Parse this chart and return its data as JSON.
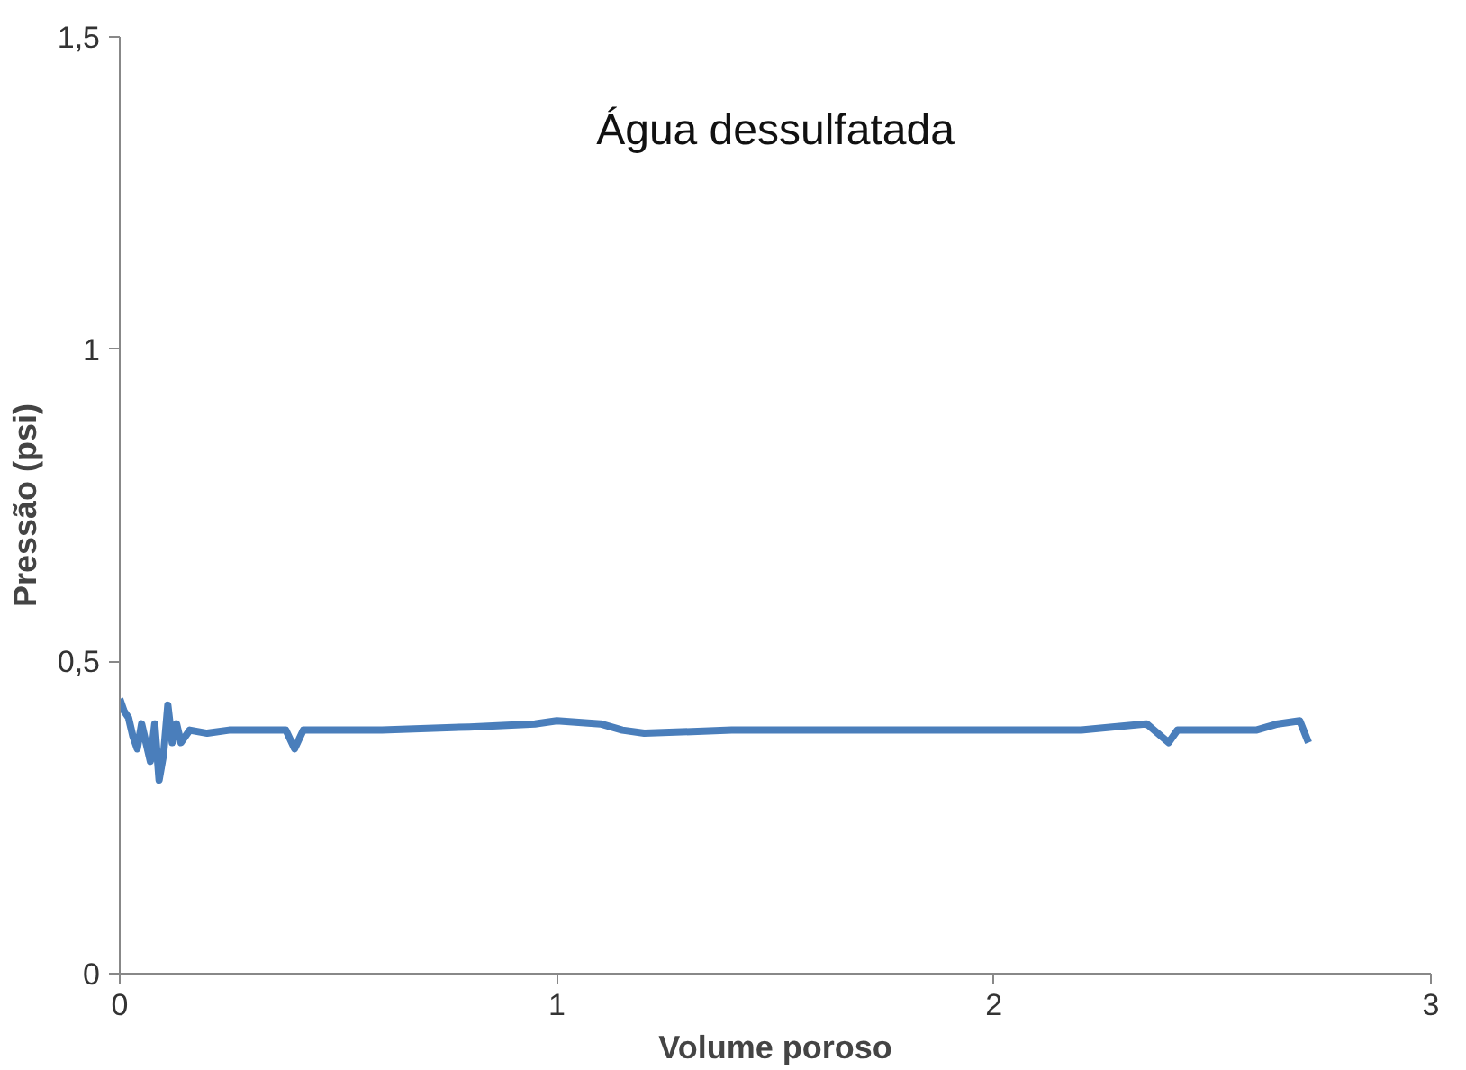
{
  "chart_data": {
    "type": "line",
    "title": "Água dessulfatada",
    "xlabel": "Volume poroso",
    "ylabel": "Pressão (psi)",
    "xlim": [
      0,
      3
    ],
    "ylim": [
      0,
      1.5
    ],
    "xticks": [
      0,
      1,
      2,
      3
    ],
    "yticks": [
      0,
      {
        "value": 0.5,
        "label": "0,5"
      },
      1,
      {
        "value": 1.5,
        "label": "1,5"
      }
    ],
    "grid": false,
    "series": [
      {
        "color": "#4a7ebb",
        "x": [
          0,
          0.01,
          0.02,
          0.03,
          0.04,
          0.05,
          0.06,
          0.07,
          0.08,
          0.09,
          0.1,
          0.11,
          0.12,
          0.13,
          0.14,
          0.16,
          0.2,
          0.25,
          0.3,
          0.38,
          0.4,
          0.42,
          0.6,
          0.8,
          0.95,
          1.0,
          1.1,
          1.15,
          1.2,
          1.4,
          1.6,
          1.8,
          2.0,
          2.2,
          2.35,
          2.4,
          2.42,
          2.5,
          2.6,
          2.65,
          2.7,
          2.72
        ],
        "values": [
          0.44,
          0.42,
          0.41,
          0.38,
          0.36,
          0.4,
          0.37,
          0.34,
          0.4,
          0.31,
          0.35,
          0.43,
          0.37,
          0.4,
          0.37,
          0.39,
          0.385,
          0.39,
          0.39,
          0.39,
          0.36,
          0.39,
          0.39,
          0.395,
          0.4,
          0.405,
          0.4,
          0.39,
          0.385,
          0.39,
          0.39,
          0.39,
          0.39,
          0.39,
          0.4,
          0.37,
          0.39,
          0.39,
          0.39,
          0.4,
          0.405,
          0.37
        ]
      }
    ]
  }
}
